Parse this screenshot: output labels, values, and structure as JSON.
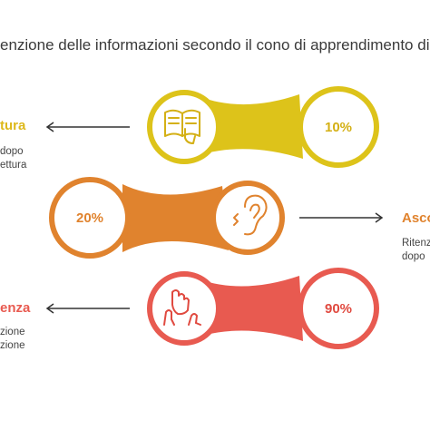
{
  "title": "enzione delle informazioni secondo il cono di apprendimento di D",
  "rows": [
    {
      "label": "tura",
      "desc_line1": "dopo",
      "desc_line2": "ettura",
      "percent": "10%",
      "color": "#DDC31A",
      "icon": "reading-book-icon"
    },
    {
      "label": "Asco",
      "desc_line1": "Ritenz",
      "desc_line2": "dopo",
      "percent": "20%",
      "color": "#E0832E",
      "icon": "ear-listening-icon"
    },
    {
      "label": "enza",
      "desc_line1": "zione",
      "desc_line2": "zione",
      "percent": "90%",
      "color": "#E85A50",
      "icon": "hands-experience-icon"
    }
  ]
}
